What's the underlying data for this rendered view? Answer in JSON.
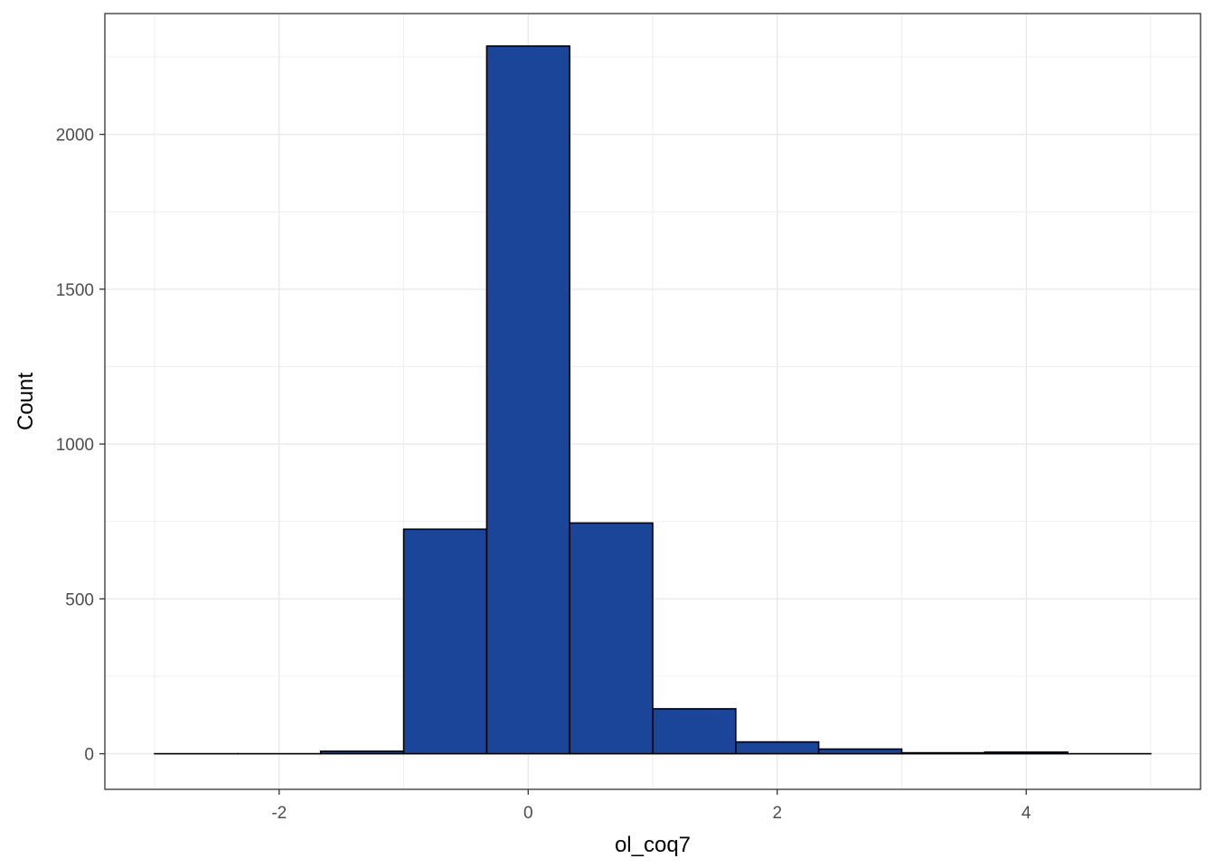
{
  "chart_data": {
    "type": "bar",
    "subtype": "histogram",
    "title": "",
    "xlabel": "ol_coq7",
    "ylabel": "Count",
    "xlim": [
      -3.4,
      5.4
    ],
    "ylim": [
      -115,
      2390
    ],
    "x_ticks": [
      -2,
      0,
      2,
      4
    ],
    "y_ticks": [
      0,
      500,
      1000,
      1500,
      2000
    ],
    "x_tick_labels": [
      "-2",
      "0",
      "2",
      "4"
    ],
    "y_tick_labels": [
      "0",
      "500",
      "1000",
      "1500",
      "2000"
    ],
    "grid": true,
    "bins": [
      {
        "x0": -3.0,
        "x1": -2.333,
        "count": 0
      },
      {
        "x0": -2.333,
        "x1": -1.667,
        "count": 0
      },
      {
        "x0": -1.667,
        "x1": -1.0,
        "count": 8
      },
      {
        "x0": -1.0,
        "x1": -0.333,
        "count": 725
      },
      {
        "x0": -0.333,
        "x1": 0.333,
        "count": 2285
      },
      {
        "x0": 0.333,
        "x1": 1.0,
        "count": 745
      },
      {
        "x0": 1.0,
        "x1": 1.667,
        "count": 145
      },
      {
        "x0": 1.667,
        "x1": 2.333,
        "count": 38
      },
      {
        "x0": 2.333,
        "x1": 3.0,
        "count": 15
      },
      {
        "x0": 3.0,
        "x1": 3.667,
        "count": 3
      },
      {
        "x0": 3.667,
        "x1": 4.333,
        "count": 5
      },
      {
        "x0": 4.333,
        "x1": 5.0,
        "count": 0
      }
    ],
    "bar_fill": "#1a4599",
    "bar_stroke": "#000000",
    "grid_color": "#ebebeb",
    "panel_border": "#333333"
  }
}
